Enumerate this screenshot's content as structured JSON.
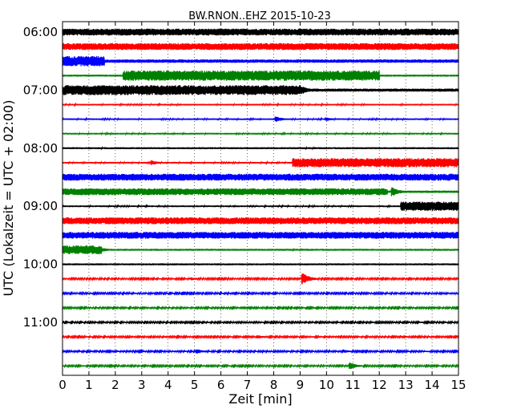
{
  "chart_data": {
    "type": "line",
    "title": "BW.RNON..EHZ 2015-10-23",
    "xlabel": "Zeit  [min]",
    "ylabel": "UTC (Lokalzeit = UTC + 02:00)",
    "xlim": [
      0,
      15
    ],
    "x_ticks": [
      0,
      1,
      2,
      3,
      4,
      5,
      6,
      7,
      8,
      9,
      10,
      11,
      12,
      13,
      14,
      15
    ],
    "x_tick_labels": [
      "0",
      "1",
      "2",
      "3",
      "4",
      "5",
      "6",
      "7",
      "8",
      "9",
      "10",
      "11",
      "12",
      "13",
      "14",
      "15"
    ],
    "y_tick_labels": [
      "06:00",
      "07:00",
      "08:00",
      "09:00",
      "10:00",
      "11:00"
    ],
    "y_ticks_trace_index": [
      0,
      4,
      8,
      12,
      16,
      20
    ],
    "trace_interval_minutes": 15,
    "grid": "vertical-dotted",
    "colors": [
      "#000000",
      "#ff0000",
      "#0000ff",
      "#008000"
    ],
    "series": [
      {
        "start": "06:00",
        "color": "#000000",
        "base": 0.45,
        "segments": [],
        "events": []
      },
      {
        "start": "06:15",
        "color": "#ff0000",
        "base": 0.45,
        "segments": [],
        "events": []
      },
      {
        "start": "06:30",
        "color": "#0000ff",
        "base": 0.22,
        "segments": [
          [
            0,
            1.6,
            0.45
          ]
        ],
        "events": [
          [
            1.0,
            0.55
          ]
        ]
      },
      {
        "start": "06:45",
        "color": "#008000",
        "base": 0.12,
        "segments": [
          [
            2.3,
            12.0,
            0.55
          ]
        ],
        "events": []
      },
      {
        "start": "07:00",
        "color": "#000000",
        "base": 0.2,
        "segments": [
          [
            0,
            9.0,
            0.45
          ]
        ],
        "events": [
          [
            9.0,
            0.7
          ]
        ]
      },
      {
        "start": "07:15",
        "color": "#ff0000",
        "base": 0.1,
        "segments": [],
        "events": []
      },
      {
        "start": "07:30",
        "color": "#0000ff",
        "base": 0.1,
        "segments": [],
        "events": [
          [
            8.1,
            0.35
          ],
          [
            10.0,
            0.25
          ]
        ]
      },
      {
        "start": "07:45",
        "color": "#008000",
        "base": 0.1,
        "segments": [],
        "events": []
      },
      {
        "start": "08:00",
        "color": "#000000",
        "base": 0.12,
        "segments": [],
        "events": []
      },
      {
        "start": "08:15",
        "color": "#ff0000",
        "base": 0.1,
        "segments": [
          [
            8.7,
            15,
            0.5
          ]
        ],
        "events": [
          [
            3.4,
            0.3
          ]
        ]
      },
      {
        "start": "08:30",
        "color": "#0000ff",
        "base": 0.45,
        "segments": [],
        "events": []
      },
      {
        "start": "08:45",
        "color": "#008000",
        "base": 0.45,
        "segments": [
          [
            12.3,
            15,
            -0.3
          ]
        ],
        "events": [
          [
            12.5,
            0.6
          ]
        ]
      },
      {
        "start": "09:00",
        "color": "#000000",
        "base": 0.1,
        "segments": [
          [
            12.8,
            15,
            0.5
          ]
        ],
        "events": []
      },
      {
        "start": "09:15",
        "color": "#ff0000",
        "base": 0.45,
        "segments": [],
        "events": []
      },
      {
        "start": "09:30",
        "color": "#0000ff",
        "base": 0.45,
        "segments": [],
        "events": []
      },
      {
        "start": "09:45",
        "color": "#008000",
        "base": 0.12,
        "segments": [
          [
            0,
            1.5,
            0.45
          ]
        ],
        "events": [
          [
            1.3,
            0.55
          ]
        ]
      },
      {
        "start": "10:00",
        "color": "#000000",
        "base": 0.12,
        "segments": [],
        "events": []
      },
      {
        "start": "10:15",
        "color": "#ff0000",
        "base": 0.08,
        "segments": [],
        "events": [
          [
            9.1,
            0.75
          ],
          [
            4.9,
            0.2
          ]
        ]
      },
      {
        "start": "10:30",
        "color": "#0000ff",
        "base": 0.08,
        "segments": [],
        "events": []
      },
      {
        "start": "10:45",
        "color": "#008000",
        "base": 0.08,
        "segments": [],
        "events": []
      },
      {
        "start": "11:00",
        "color": "#000000",
        "base": 0.08,
        "segments": [],
        "events": []
      },
      {
        "start": "11:15",
        "color": "#ff0000",
        "base": 0.08,
        "segments": [],
        "events": [
          [
            7.4,
            0.25
          ]
        ]
      },
      {
        "start": "11:30",
        "color": "#0000ff",
        "base": 0.08,
        "segments": [],
        "events": [
          [
            5.1,
            0.3
          ],
          [
            10.7,
            0.2
          ]
        ]
      },
      {
        "start": "11:45",
        "color": "#008000",
        "base": 0.08,
        "segments": [],
        "events": [
          [
            10.9,
            0.45
          ]
        ]
      }
    ]
  }
}
